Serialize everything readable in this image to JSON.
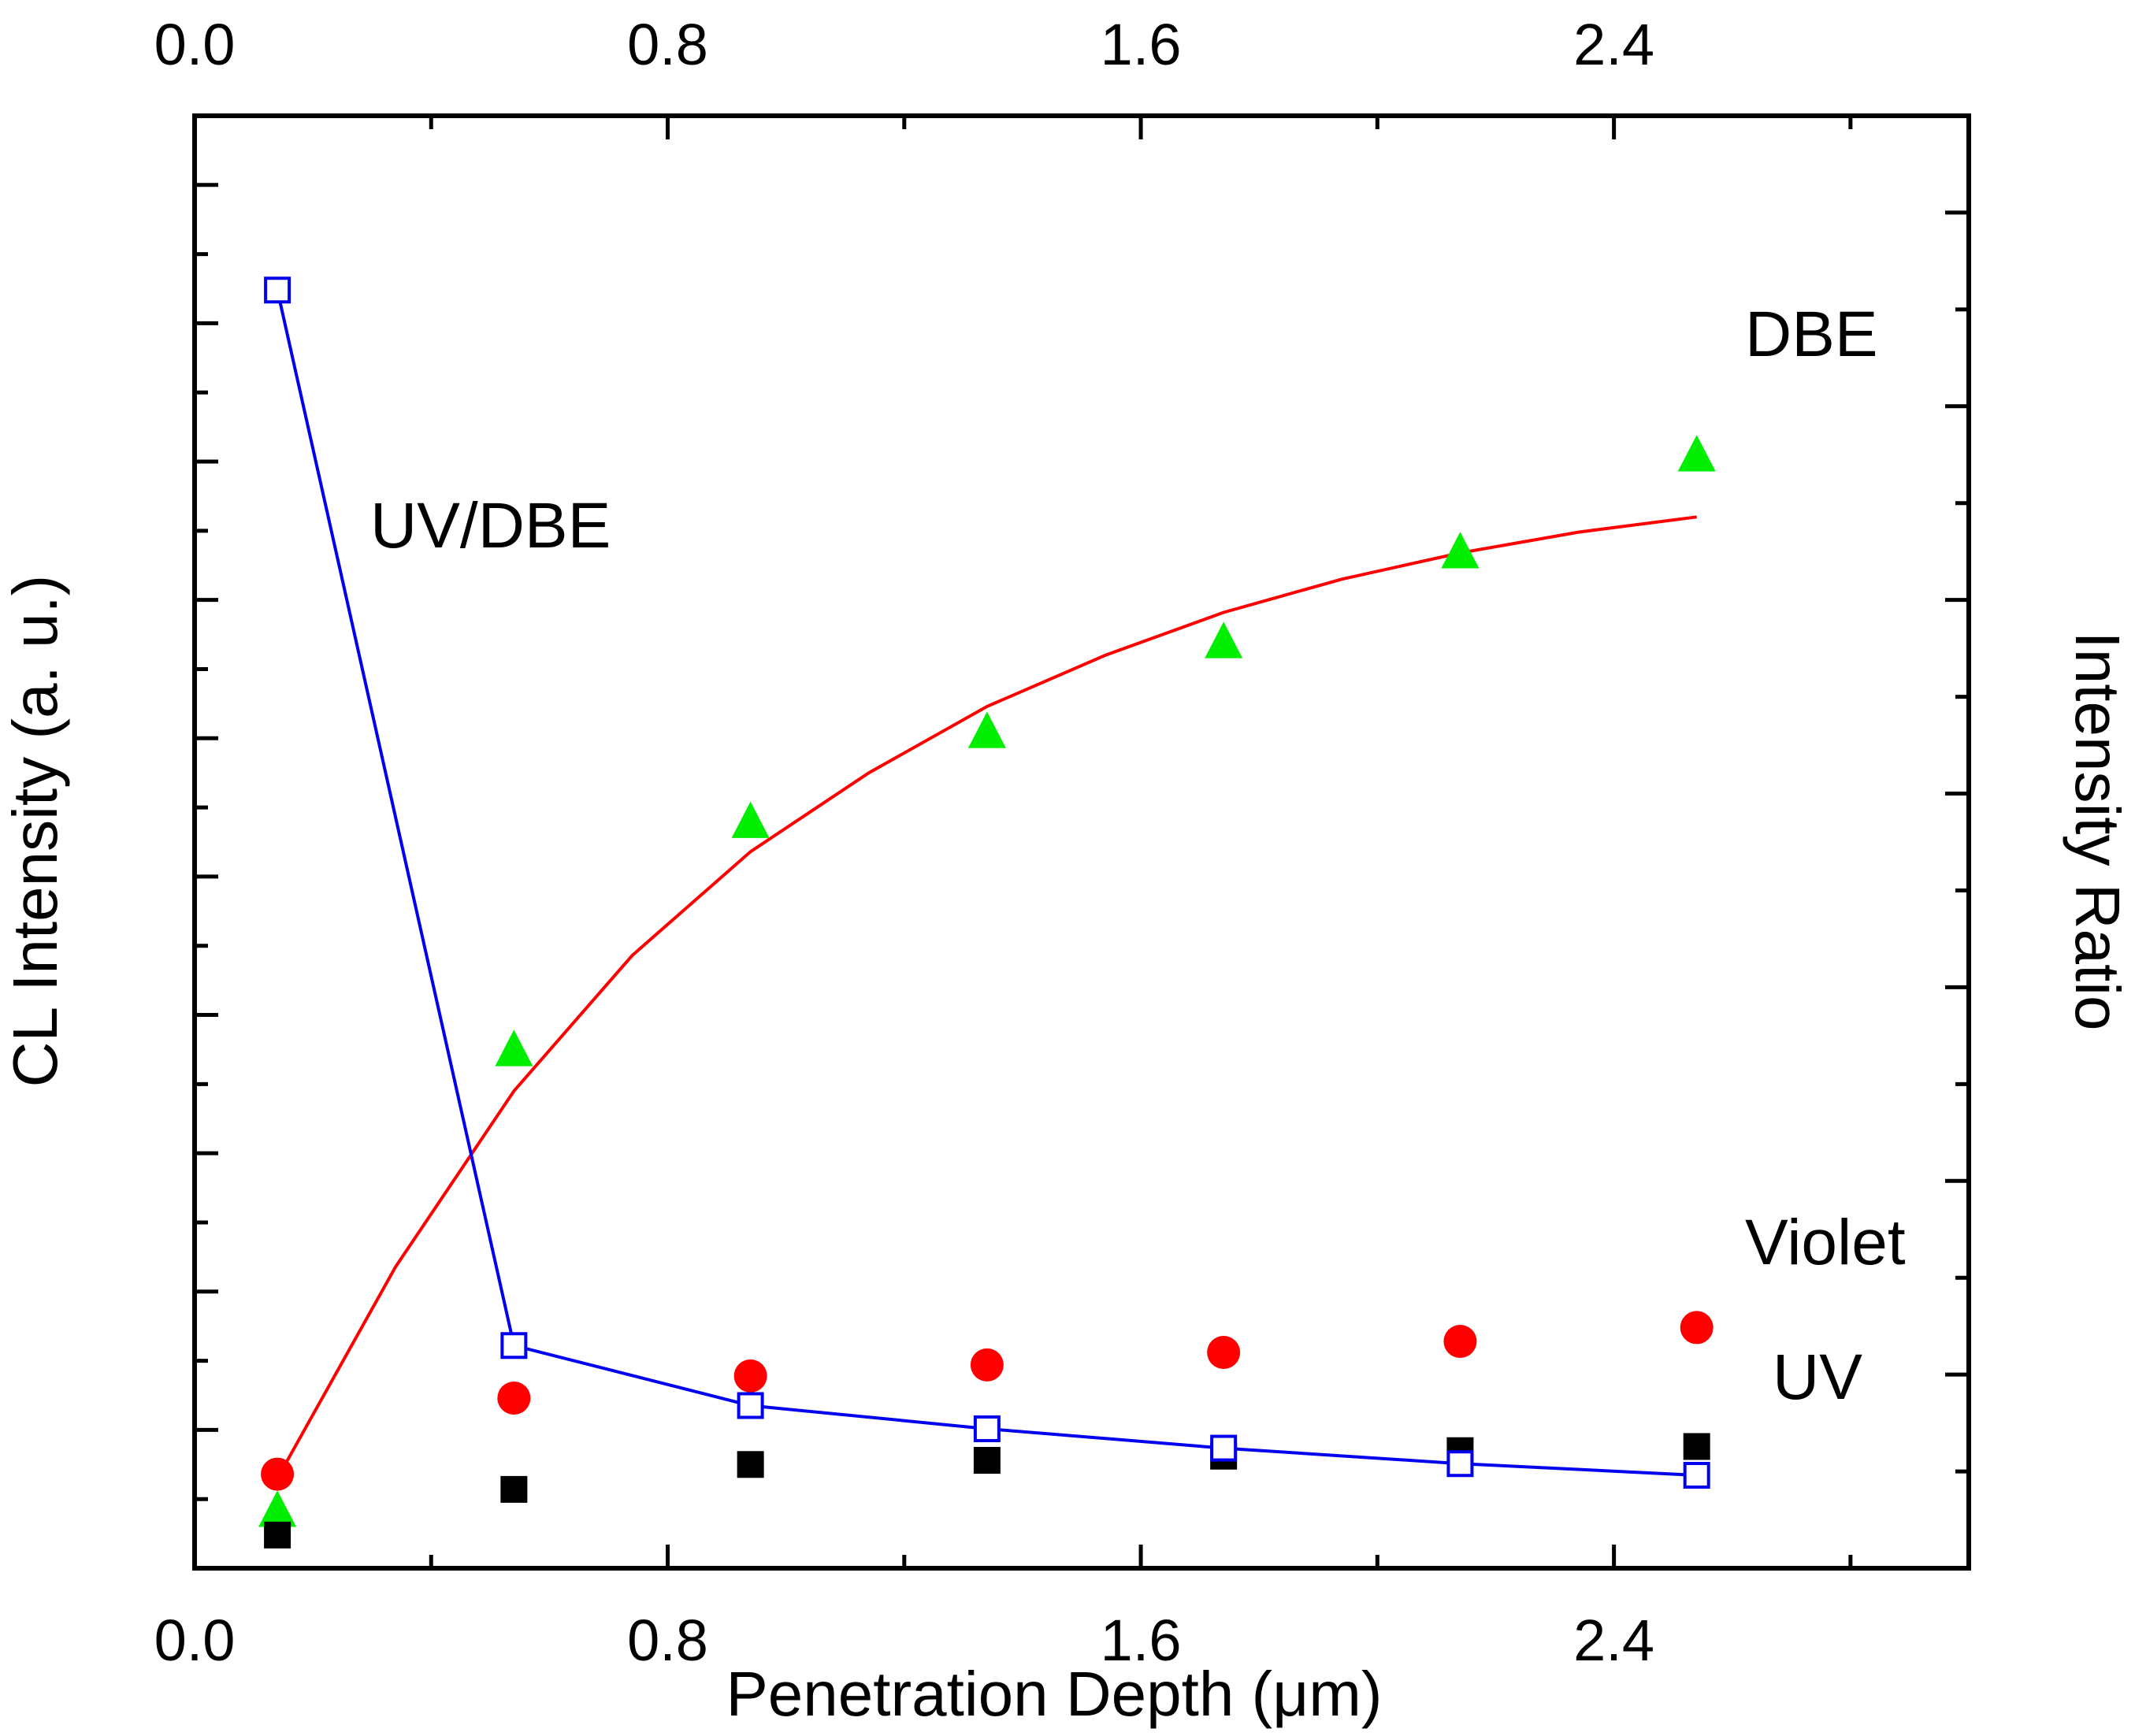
{
  "chart_data": {
    "type": "scatter",
    "title": "",
    "xlabel": "Penetration Depth (μm)",
    "ylabel_left": "CL Intensity (a. u.)",
    "ylabel_right": "Intensity Ratio",
    "xlim": [
      0.0,
      3.0
    ],
    "xticks": [
      0.0,
      0.8,
      1.6,
      2.4
    ],
    "xtick_labels": [
      "0.0",
      "0.8",
      "1.6",
      "2.4"
    ],
    "top_xtick_labels": [
      "0.0",
      "0.8",
      "1.6",
      "2.4"
    ],
    "ylim_left": [
      0,
      10.5
    ],
    "ylim_right": [
      0,
      7.5
    ],
    "grid": false,
    "series": [
      {
        "name": "DBE",
        "axis": "left",
        "marker": "triangle",
        "color": "#00ee00",
        "x": [
          0.14,
          0.54,
          0.94,
          1.34,
          1.74,
          2.14,
          2.54
        ],
        "y": [
          0.42,
          3.75,
          5.4,
          6.05,
          6.7,
          7.35,
          8.05
        ]
      },
      {
        "name": "DBE fit",
        "axis": "left",
        "style": "line",
        "color": "#ff0000",
        "x": [
          0.14,
          0.34,
          0.54,
          0.74,
          0.94,
          1.14,
          1.34,
          1.54,
          1.74,
          1.94,
          2.14,
          2.34,
          2.54
        ],
        "y": [
          0.65,
          2.18,
          3.45,
          4.43,
          5.18,
          5.75,
          6.23,
          6.6,
          6.91,
          7.15,
          7.34,
          7.49,
          7.6
        ]
      },
      {
        "name": "Violet",
        "axis": "left",
        "marker": "circle",
        "color": "#ff0000",
        "x": [
          0.14,
          0.54,
          0.94,
          1.34,
          1.74,
          2.14,
          2.54
        ],
        "y": [
          0.68,
          1.23,
          1.39,
          1.47,
          1.56,
          1.64,
          1.74
        ]
      },
      {
        "name": "UV",
        "axis": "left",
        "marker": "square",
        "color": "#000000",
        "x": [
          0.14,
          0.54,
          0.94,
          1.34,
          1.74,
          2.14,
          2.54
        ],
        "y": [
          0.24,
          0.57,
          0.75,
          0.78,
          0.81,
          0.85,
          0.88
        ]
      },
      {
        "name": "UV/DBE",
        "axis": "right",
        "marker": "open-square",
        "style": "line+marker",
        "color": "#0000ee",
        "x": [
          0.14,
          0.54,
          0.94,
          1.34,
          1.74,
          2.14,
          2.54
        ],
        "y": [
          6.6,
          1.15,
          0.84,
          0.72,
          0.62,
          0.54,
          0.48
        ]
      }
    ],
    "labels": {
      "DBE": "DBE",
      "Violet": "Violet",
      "UV": "UV",
      "UV/DBE": "UV/DBE"
    }
  }
}
